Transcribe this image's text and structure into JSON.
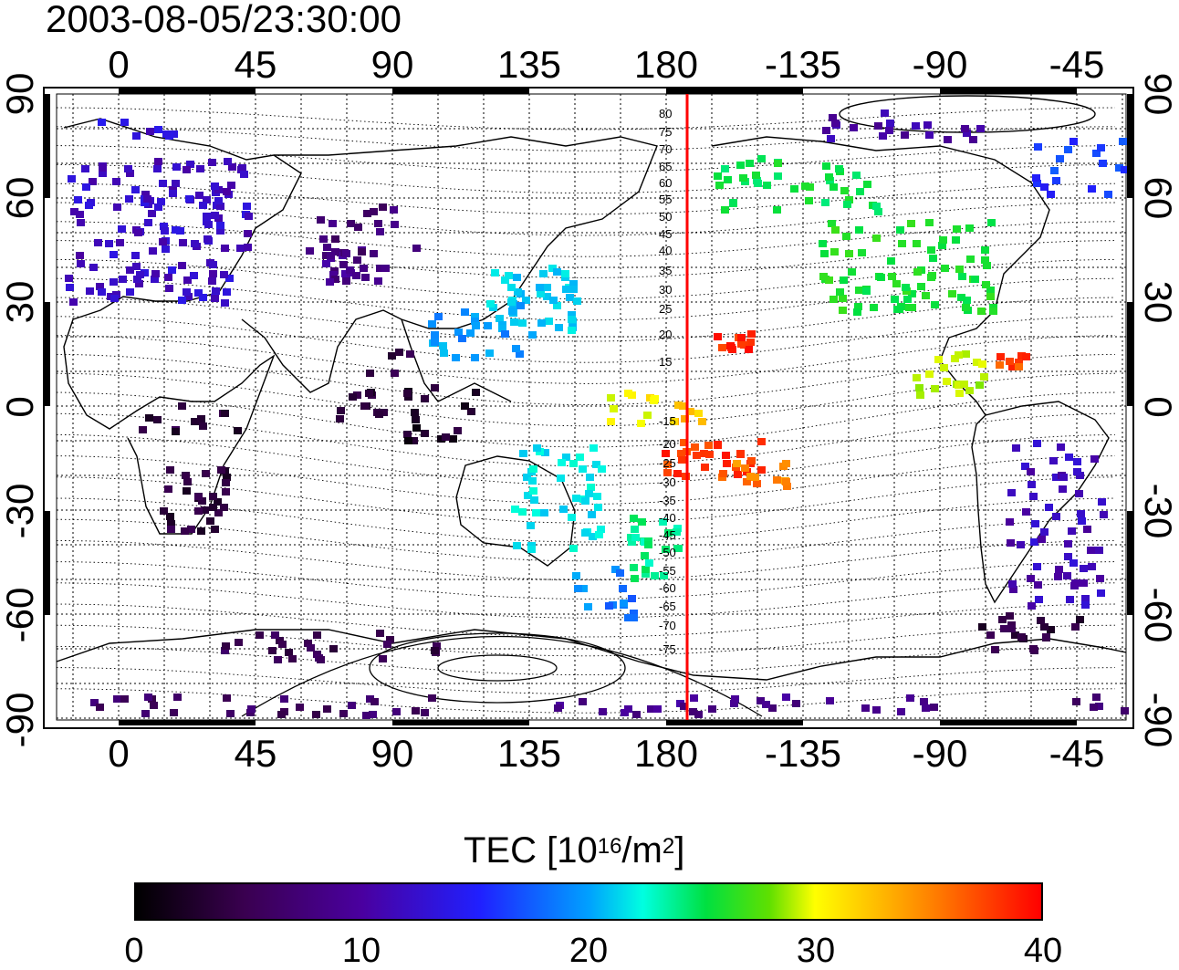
{
  "timestamp": "2003-08-05/23:30:00",
  "map": {
    "lon_ticks": [
      "0",
      "45",
      "90",
      "135",
      "180",
      "-135",
      "-90",
      "-45"
    ],
    "lat_ticks": [
      "90",
      "60",
      "30",
      "0",
      "-30",
      "-60",
      "-90"
    ],
    "maglat_labels": [
      "80",
      "75",
      "70",
      "65",
      "60",
      "55",
      "50",
      "45",
      "40",
      "35",
      "30",
      "25",
      "20",
      "15",
      "-15",
      "-20",
      "-25",
      "-30",
      "-35",
      "-40",
      "-45",
      "-50",
      "-55",
      "-60",
      "-65",
      "-70",
      "-75"
    ],
    "meridian_color": "#ff0000"
  },
  "colorbar": {
    "title_prefix": "TEC  [10",
    "title_exp1": "16",
    "title_mid": "/m",
    "title_exp2": "2",
    "title_suffix": "]",
    "labels": [
      "0",
      "10",
      "20",
      "30",
      "40"
    ],
    "min": 0,
    "max": 40,
    "colormap": [
      "#000000",
      "#3a0050",
      "#4a00a0",
      "#2020ff",
      "#00a0ff",
      "#00ffe0",
      "#00e040",
      "#60e000",
      "#ffff00",
      "#ff8000",
      "#ff0000"
    ]
  }
}
